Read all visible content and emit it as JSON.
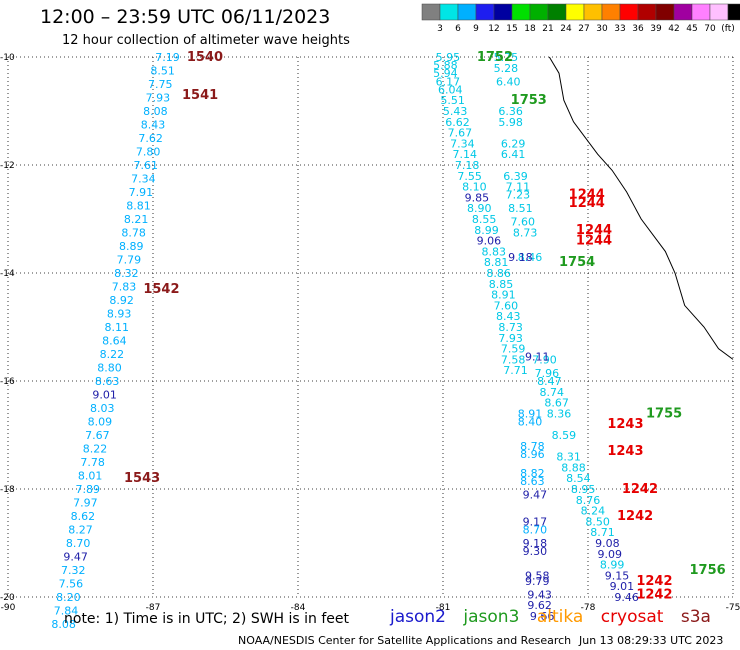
{
  "title": "12:00 – 23:59 UTC 06/11/2023",
  "subtitle": "12 hour collection of altimeter wave heights",
  "note": "note:  1) Time is in UTC;  2) SWH is in feet",
  "legend": [
    {
      "name": "jason2",
      "color": "#1a1acc"
    },
    {
      "name": "jason3",
      "color": "#1f9a1f"
    },
    {
      "name": "altika",
      "color": "#ff9900"
    },
    {
      "name": "cryosat",
      "color": "#e60000"
    },
    {
      "name": "s3a",
      "color": "#8b1a1a"
    }
  ],
  "credit": "NOAA/NESDIS Center for Satellite Applications and Research",
  "timestamp": "Jun 13 08:29:33 UTC 2023",
  "colorbar": {
    "labels": [
      "3",
      "6",
      "9",
      "12",
      "15",
      "18",
      "21",
      "24",
      "27",
      "30",
      "33",
      "36",
      "39",
      "42",
      "45",
      "70",
      "(ft)"
    ],
    "colors": [
      "#808080",
      "#00e5e5",
      "#00b0ff",
      "#1e1ef0",
      "#0000a0",
      "#00e000",
      "#00b000",
      "#008000",
      "#ffff00",
      "#ffc000",
      "#ff8000",
      "#ff0000",
      "#b00000",
      "#800000",
      "#a000a0",
      "#ff80ff",
      "#ffc0ff",
      "#000000"
    ]
  },
  "chart_data": {
    "type": "scatter",
    "xlim": [
      -90,
      -75
    ],
    "ylim": [
      -20,
      -10
    ],
    "x_ticks": [
      "-90",
      "-87",
      "-84",
      "-81",
      "-78",
      "-75"
    ],
    "y_ticks": [
      "-10",
      "-12",
      "-14",
      "-16",
      "-18",
      "-20"
    ],
    "grid": true,
    "pass_labels": [
      {
        "text": "1540",
        "lon": -86.3,
        "lat": -10.0,
        "color": "#8b1a1a"
      },
      {
        "text": "1541",
        "lon": -86.4,
        "lat": -10.7,
        "color": "#8b1a1a"
      },
      {
        "text": "1542",
        "lon": -87.2,
        "lat": -14.3,
        "color": "#8b1a1a"
      },
      {
        "text": "1543",
        "lon": -87.6,
        "lat": -17.8,
        "color": "#8b1a1a"
      },
      {
        "text": "1752",
        "lon": -80.3,
        "lat": -10.0,
        "color": "#1f9a1f"
      },
      {
        "text": "1753",
        "lon": -79.6,
        "lat": -10.8,
        "color": "#1f9a1f"
      },
      {
        "text": "1754",
        "lon": -78.6,
        "lat": -13.8,
        "color": "#1f9a1f"
      },
      {
        "text": "1755",
        "lon": -76.8,
        "lat": -16.6,
        "color": "#1f9a1f"
      },
      {
        "text": "1756",
        "lon": -75.9,
        "lat": -19.5,
        "color": "#1f9a1f"
      },
      {
        "text": "1244",
        "lon": -78.4,
        "lat": -12.55,
        "color": "#e60000"
      },
      {
        "text": "1244",
        "lon": -78.4,
        "lat": -12.7,
        "color": "#e60000"
      },
      {
        "text": "1244",
        "lon": -78.25,
        "lat": -13.2,
        "color": "#e60000"
      },
      {
        "text": "1244",
        "lon": -78.25,
        "lat": -13.4,
        "color": "#e60000"
      },
      {
        "text": "1243",
        "lon": -77.6,
        "lat": -16.8,
        "color": "#e60000"
      },
      {
        "text": "1243",
        "lon": -77.6,
        "lat": -17.3,
        "color": "#e60000"
      },
      {
        "text": "1242",
        "lon": -77.3,
        "lat": -18.0,
        "color": "#e60000"
      },
      {
        "text": "1242",
        "lon": -77.4,
        "lat": -18.5,
        "color": "#e60000"
      },
      {
        "text": "1242",
        "lon": -77.0,
        "lat": -19.7,
        "color": "#e60000"
      },
      {
        "text": "1242",
        "lon": -77.0,
        "lat": -19.95,
        "color": "#e60000"
      }
    ],
    "tracks": [
      {
        "color": "#00b0ff",
        "points": [
          {
            "lon": -86.7,
            "lat": -10.0,
            "v": "7.19"
          },
          {
            "lon": -86.8,
            "lat": -10.25,
            "v": "8.51"
          },
          {
            "lon": -86.85,
            "lat": -10.5,
            "v": "7.75"
          },
          {
            "lon": -86.9,
            "lat": -10.75,
            "v": "7.93"
          },
          {
            "lon": -86.95,
            "lat": -11.0,
            "v": "8.08"
          },
          {
            "lon": -87.0,
            "lat": -11.25,
            "v": "8.43"
          },
          {
            "lon": -87.05,
            "lat": -11.5,
            "v": "7.62"
          },
          {
            "lon": -87.1,
            "lat": -11.75,
            "v": "7.80"
          },
          {
            "lon": -87.15,
            "lat": -12.0,
            "v": "7.61"
          },
          {
            "lon": -87.2,
            "lat": -12.25,
            "v": "7.34"
          },
          {
            "lon": -87.25,
            "lat": -12.5,
            "v": "7.91"
          },
          {
            "lon": -87.3,
            "lat": -12.75,
            "v": "8.81"
          },
          {
            "lon": -87.35,
            "lat": -13.0,
            "v": "8.21"
          },
          {
            "lon": -87.4,
            "lat": -13.25,
            "v": "8.78"
          },
          {
            "lon": -87.45,
            "lat": -13.5,
            "v": "8.89"
          },
          {
            "lon": -87.5,
            "lat": -13.75,
            "v": "7.79"
          },
          {
            "lon": -87.55,
            "lat": -14.0,
            "v": "8.32"
          },
          {
            "lon": -87.6,
            "lat": -14.25,
            "v": "7.83"
          },
          {
            "lon": -87.65,
            "lat": -14.5,
            "v": "8.92"
          },
          {
            "lon": -87.7,
            "lat": -14.75,
            "v": "8.93"
          },
          {
            "lon": -87.75,
            "lat": -15.0,
            "v": "8.11"
          },
          {
            "lon": -87.8,
            "lat": -15.25,
            "v": "8.64"
          },
          {
            "lon": -87.85,
            "lat": -15.5,
            "v": "8.22"
          },
          {
            "lon": -87.9,
            "lat": -15.75,
            "v": "8.80"
          },
          {
            "lon": -87.95,
            "lat": -16.0,
            "v": "8.63"
          },
          {
            "lon": -88.0,
            "lat": -16.25,
            "v": "9.01",
            "c": "#1e1ea8"
          },
          {
            "lon": -88.05,
            "lat": -16.5,
            "v": "8.03"
          },
          {
            "lon": -88.1,
            "lat": -16.75,
            "v": "8.09"
          },
          {
            "lon": -88.15,
            "lat": -17.0,
            "v": "7.67"
          },
          {
            "lon": -88.2,
            "lat": -17.25,
            "v": "8.22"
          },
          {
            "lon": -88.25,
            "lat": -17.5,
            "v": "7.78"
          },
          {
            "lon": -88.3,
            "lat": -17.75,
            "v": "8.01"
          },
          {
            "lon": -88.35,
            "lat": -18.0,
            "v": "7.89"
          },
          {
            "lon": -88.4,
            "lat": -18.25,
            "v": "7.97"
          },
          {
            "lon": -88.45,
            "lat": -18.5,
            "v": "8.62"
          },
          {
            "lon": -88.5,
            "lat": -18.75,
            "v": "8.27"
          },
          {
            "lon": -88.55,
            "lat": -19.0,
            "v": "8.70"
          },
          {
            "lon": -88.6,
            "lat": -19.25,
            "v": "9.47",
            "c": "#1e1ea8"
          },
          {
            "lon": -88.65,
            "lat": -19.5,
            "v": "7.32"
          },
          {
            "lon": -88.7,
            "lat": -19.75,
            "v": "7.56"
          },
          {
            "lon": -88.75,
            "lat": -20.0,
            "v": "8.20"
          },
          {
            "lon": -88.8,
            "lat": -20.25,
            "v": "7.84"
          },
          {
            "lon": -88.85,
            "lat": -20.5,
            "v": "8.08"
          }
        ]
      },
      {
        "color": "#00c8e6",
        "points": [
          {
            "lon": -80.9,
            "lat": -10.0,
            "v": "5.95"
          },
          {
            "lon": -80.95,
            "lat": -10.15,
            "v": "5.88"
          },
          {
            "lon": -80.95,
            "lat": -10.3,
            "v": "5.94"
          },
          {
            "lon": -80.9,
            "lat": -10.45,
            "v": "6.17"
          },
          {
            "lon": -80.85,
            "lat": -10.6,
            "v": "6.04"
          },
          {
            "lon": -80.8,
            "lat": -10.8,
            "v": "5.51"
          },
          {
            "lon": -80.75,
            "lat": -11.0,
            "v": "5.43"
          },
          {
            "lon": -80.7,
            "lat": -11.2,
            "v": "6.62"
          },
          {
            "lon": -80.65,
            "lat": -11.4,
            "v": "7.67"
          },
          {
            "lon": -80.6,
            "lat": -11.6,
            "v": "7.34"
          },
          {
            "lon": -80.55,
            "lat": -11.8,
            "v": "7.14"
          },
          {
            "lon": -80.5,
            "lat": -12.0,
            "v": "7.18"
          },
          {
            "lon": -80.45,
            "lat": -12.2,
            "v": "7.55"
          },
          {
            "lon": -80.35,
            "lat": -12.4,
            "v": "8.10"
          },
          {
            "lon": -80.3,
            "lat": -12.6,
            "v": "9.85",
            "c": "#1e1ea8"
          },
          {
            "lon": -80.25,
            "lat": -12.8,
            "v": "8.90"
          },
          {
            "lon": -80.15,
            "lat": -13.0,
            "v": "8.55"
          },
          {
            "lon": -80.1,
            "lat": -13.2,
            "v": "8.99"
          },
          {
            "lon": -80.05,
            "lat": -13.4,
            "v": "9.06",
            "c": "#1e1ea8"
          },
          {
            "lon": -79.95,
            "lat": -13.6,
            "v": "8.83"
          },
          {
            "lon": -79.9,
            "lat": -13.8,
            "v": "8.81"
          },
          {
            "lon": -79.85,
            "lat": -14.0,
            "v": "8.86"
          },
          {
            "lon": -79.8,
            "lat": -14.2,
            "v": "8.85"
          },
          {
            "lon": -79.75,
            "lat": -14.4,
            "v": "8.91"
          },
          {
            "lon": -79.7,
            "lat": -14.6,
            "v": "7.60"
          },
          {
            "lon": -79.65,
            "lat": -14.8,
            "v": "8.43"
          },
          {
            "lon": -79.6,
            "lat": -15.0,
            "v": "8.73"
          },
          {
            "lon": -79.6,
            "lat": -15.2,
            "v": "7.93"
          },
          {
            "lon": -79.55,
            "lat": -15.4,
            "v": "7.59"
          },
          {
            "lon": -79.55,
            "lat": -15.6,
            "v": "7.58"
          },
          {
            "lon": -79.5,
            "lat": -15.8,
            "v": "7.71"
          }
        ]
      },
      {
        "color": "#00c8e6",
        "points": [
          {
            "lon": -79.7,
            "lat": -10.0,
            "v": "5.75"
          },
          {
            "lon": -79.7,
            "lat": -10.2,
            "v": "5.28"
          },
          {
            "lon": -79.65,
            "lat": -10.45,
            "v": "6.40"
          },
          {
            "lon": -79.6,
            "lat": -11.0,
            "v": "6.36"
          },
          {
            "lon": -79.6,
            "lat": -11.2,
            "v": "5.98"
          },
          {
            "lon": -79.55,
            "lat": -11.6,
            "v": "6.29"
          },
          {
            "lon": -79.55,
            "lat": -11.8,
            "v": "6.41"
          },
          {
            "lon": -79.5,
            "lat": -12.2,
            "v": "6.39"
          },
          {
            "lon": -79.45,
            "lat": -12.4,
            "v": "7.11"
          },
          {
            "lon": -79.45,
            "lat": -12.55,
            "v": "7.23"
          },
          {
            "lon": -79.4,
            "lat": -12.8,
            "v": "8.51"
          },
          {
            "lon": -79.35,
            "lat": -13.05,
            "v": "7.60"
          },
          {
            "lon": -79.3,
            "lat": -13.25,
            "v": "8.73"
          },
          {
            "lon": -79.2,
            "lat": -13.7,
            "v": "8.46"
          },
          {
            "lon": -78.9,
            "lat": -15.6,
            "v": "7.90"
          },
          {
            "lon": -78.85,
            "lat": -15.85,
            "v": "7.96"
          },
          {
            "lon": -78.8,
            "lat": -16.0,
            "v": "8.47"
          },
          {
            "lon": -78.75,
            "lat": -16.2,
            "v": "8.74"
          },
          {
            "lon": -78.65,
            "lat": -16.4,
            "v": "8.67"
          },
          {
            "lon": -78.6,
            "lat": -16.6,
            "v": "8.36"
          },
          {
            "lon": -78.5,
            "lat": -17.0,
            "v": "8.59"
          },
          {
            "lon": -78.4,
            "lat": -17.4,
            "v": "8.31"
          },
          {
            "lon": -78.3,
            "lat": -17.6,
            "v": "8.88"
          },
          {
            "lon": -78.2,
            "lat": -17.8,
            "v": "8.54"
          },
          {
            "lon": -78.1,
            "lat": -18.0,
            "v": "8.95"
          },
          {
            "lon": -78.0,
            "lat": -18.2,
            "v": "8.76"
          },
          {
            "lon": -77.9,
            "lat": -18.4,
            "v": "8.24"
          },
          {
            "lon": -77.8,
            "lat": -18.6,
            "v": "8.50"
          },
          {
            "lon": -77.7,
            "lat": -18.8,
            "v": "8.71"
          },
          {
            "lon": -77.6,
            "lat": -19.0,
            "v": "9.08",
            "c": "#1e1ea8"
          },
          {
            "lon": -77.55,
            "lat": -19.2,
            "v": "9.09",
            "c": "#1e1ea8"
          },
          {
            "lon": -77.5,
            "lat": -19.4,
            "v": "8.99"
          },
          {
            "lon": -77.4,
            "lat": -19.6,
            "v": "9.15",
            "c": "#1e1ea8"
          },
          {
            "lon": -77.3,
            "lat": -19.8,
            "v": "9.01",
            "c": "#1e1ea8"
          },
          {
            "lon": -77.2,
            "lat": -20.0,
            "v": "9.46",
            "c": "#1e1ea8"
          }
        ]
      },
      {
        "color": "#00b0ff",
        "points": [
          {
            "lon": -79.2,
            "lat": -16.6,
            "v": "8.91"
          },
          {
            "lon": -79.2,
            "lat": -16.75,
            "v": "8.40"
          },
          {
            "lon": -79.15,
            "lat": -17.2,
            "v": "8.78"
          },
          {
            "lon": -79.15,
            "lat": -17.35,
            "v": "8.96"
          },
          {
            "lon": -79.15,
            "lat": -17.7,
            "v": "8.82"
          },
          {
            "lon": -79.15,
            "lat": -17.85,
            "v": "8.63"
          },
          {
            "lon": -79.1,
            "lat": -18.1,
            "v": "9.47",
            "c": "#1e1ea8"
          },
          {
            "lon": -79.1,
            "lat": -18.6,
            "v": "9.17",
            "c": "#1e1ea8"
          },
          {
            "lon": -79.1,
            "lat": -18.75,
            "v": "8.70"
          },
          {
            "lon": -79.1,
            "lat": -19.0,
            "v": "9.18",
            "c": "#1e1ea8"
          },
          {
            "lon": -79.1,
            "lat": -19.15,
            "v": "9.30",
            "c": "#1e1ea8"
          },
          {
            "lon": -79.05,
            "lat": -19.6,
            "v": "9.58",
            "c": "#1e1ea8"
          },
          {
            "lon": -79.05,
            "lat": -19.7,
            "v": "9.79",
            "c": "#1e1ea8"
          },
          {
            "lon": -79.0,
            "lat": -19.95,
            "v": "9.43",
            "c": "#1e1ea8"
          },
          {
            "lon": -79.0,
            "lat": -20.15,
            "v": "9.62",
            "c": "#1e1ea8"
          },
          {
            "lon": -78.95,
            "lat": -20.35,
            "v": "9.66",
            "c": "#1e1ea8"
          }
        ]
      },
      {
        "color": "#00b0ff",
        "points": [
          {
            "lon": -79.4,
            "lat": -13.7,
            "v": "9.18",
            "c": "#1e1ea8"
          },
          {
            "lon": -79.05,
            "lat": -15.55,
            "v": "9.11",
            "c": "#1e1ea8"
          }
        ]
      }
    ]
  }
}
